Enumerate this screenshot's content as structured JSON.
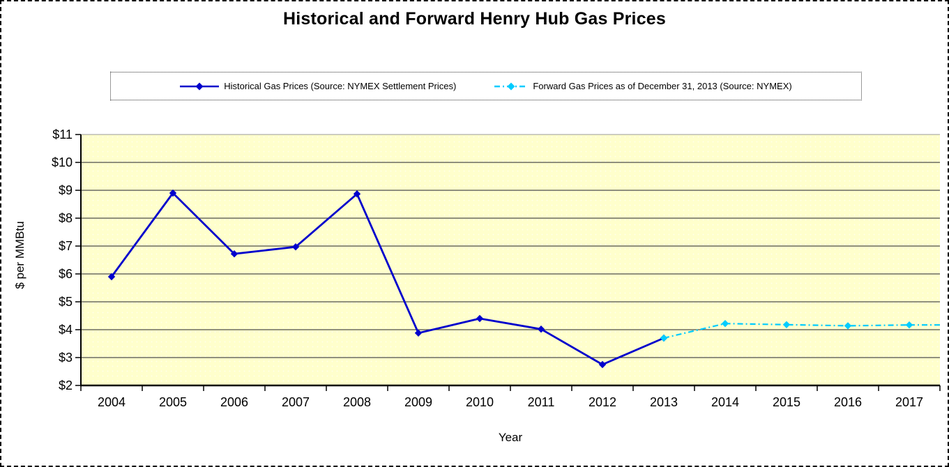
{
  "chart": {
    "title": "Historical and Forward Henry Hub Gas Prices"
  },
  "legend": {
    "entries": [
      {
        "label": "Historical Gas Prices (Source: NYMEX Settlement Prices)",
        "color": "#0000CC",
        "line_style": "solid",
        "marker": "diamond"
      },
      {
        "label": "Forward Gas Prices as of December 31, 2013 (Source: NYMEX)",
        "color": "#00CCFF",
        "line_style": "dash-dot",
        "dash_pattern": "8 4 2 4",
        "marker": "diamond"
      }
    ]
  },
  "chart_data": {
    "type": "line",
    "title": "Historical and Forward Henry Hub Gas Prices",
    "xlabel": "Year",
    "ylabel": "$ per MMBtu",
    "categories": [
      2004,
      2005,
      2006,
      2007,
      2008,
      2009,
      2010,
      2011,
      2012,
      2013,
      2014,
      2015,
      2016,
      2017
    ],
    "ylim": [
      2,
      11
    ],
    "yticks": [
      2,
      3,
      4,
      5,
      6,
      7,
      8,
      9,
      10,
      11
    ],
    "ytick_labels": [
      "$2",
      "$3",
      "$4",
      "$5",
      "$6",
      "$7",
      "$8",
      "$9",
      "$10",
      "$11"
    ],
    "gridlines": "horizontal",
    "legend_position": "top",
    "plot_bg": "#FFFFCC",
    "gridline_color": "#4d4d4d",
    "axis_color": "#000000",
    "series": [
      {
        "name": "Historical Gas Prices (Source: NYMEX Settlement Prices)",
        "color": "#0000CC",
        "line_style": "solid",
        "marker": "diamond",
        "start_category": 2004,
        "values": [
          5.9,
          8.9,
          6.72,
          6.97,
          8.87,
          3.88,
          4.4,
          4.02,
          2.75,
          3.7
        ]
      },
      {
        "name": "Forward Gas Prices as of December 31, 2013 (Source: NYMEX)",
        "color": "#00CCFF",
        "line_style": "dash-dot",
        "dash_pattern": "8 4 2 4",
        "marker": "diamond",
        "start_category": 2013,
        "values": [
          3.7,
          4.22,
          4.18,
          4.14,
          4.17
        ],
        "extends_to_right_edge": true
      }
    ]
  }
}
